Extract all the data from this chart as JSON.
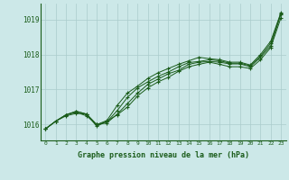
{
  "background_color": "#cce8e8",
  "grid_color": "#aacccc",
  "line_color": "#1a5c1a",
  "text_color": "#1a5c1a",
  "xlabel": "Graphe pression niveau de la mer (hPa)",
  "xlim": [
    -0.5,
    23.5
  ],
  "ylim": [
    1015.55,
    1019.45
  ],
  "yticks": [
    1016,
    1017,
    1018,
    1019
  ],
  "xticks": [
    0,
    1,
    2,
    3,
    4,
    5,
    6,
    7,
    8,
    9,
    10,
    11,
    12,
    13,
    14,
    15,
    16,
    17,
    18,
    19,
    20,
    21,
    22,
    23
  ],
  "series": [
    [
      1015.88,
      1016.1,
      1016.28,
      1016.35,
      1016.25,
      1016.0,
      1016.05,
      1016.3,
      1016.6,
      1016.9,
      1017.15,
      1017.3,
      1017.45,
      1017.55,
      1017.72,
      1017.78,
      1017.8,
      1017.78,
      1017.73,
      1017.73,
      1017.65,
      1017.92,
      1018.25,
      1019.15
    ],
    [
      1015.88,
      1016.1,
      1016.28,
      1016.38,
      1016.3,
      1016.0,
      1016.12,
      1016.55,
      1016.9,
      1017.1,
      1017.32,
      1017.48,
      1017.6,
      1017.72,
      1017.82,
      1017.92,
      1017.88,
      1017.85,
      1017.78,
      1017.78,
      1017.7,
      1018.0,
      1018.38,
      1019.2
    ],
    [
      1015.88,
      1016.1,
      1016.25,
      1016.32,
      1016.3,
      1016.0,
      1016.08,
      1016.4,
      1016.78,
      1017.05,
      1017.22,
      1017.38,
      1017.5,
      1017.65,
      1017.77,
      1017.8,
      1017.85,
      1017.82,
      1017.75,
      1017.75,
      1017.68,
      1017.95,
      1018.32,
      1019.18
    ],
    [
      1015.88,
      1016.1,
      1016.28,
      1016.38,
      1016.3,
      1015.95,
      1016.1,
      1016.28,
      1016.5,
      1016.82,
      1017.05,
      1017.22,
      1017.35,
      1017.52,
      1017.65,
      1017.72,
      1017.78,
      1017.72,
      1017.65,
      1017.65,
      1017.6,
      1017.85,
      1018.2,
      1019.05
    ]
  ]
}
